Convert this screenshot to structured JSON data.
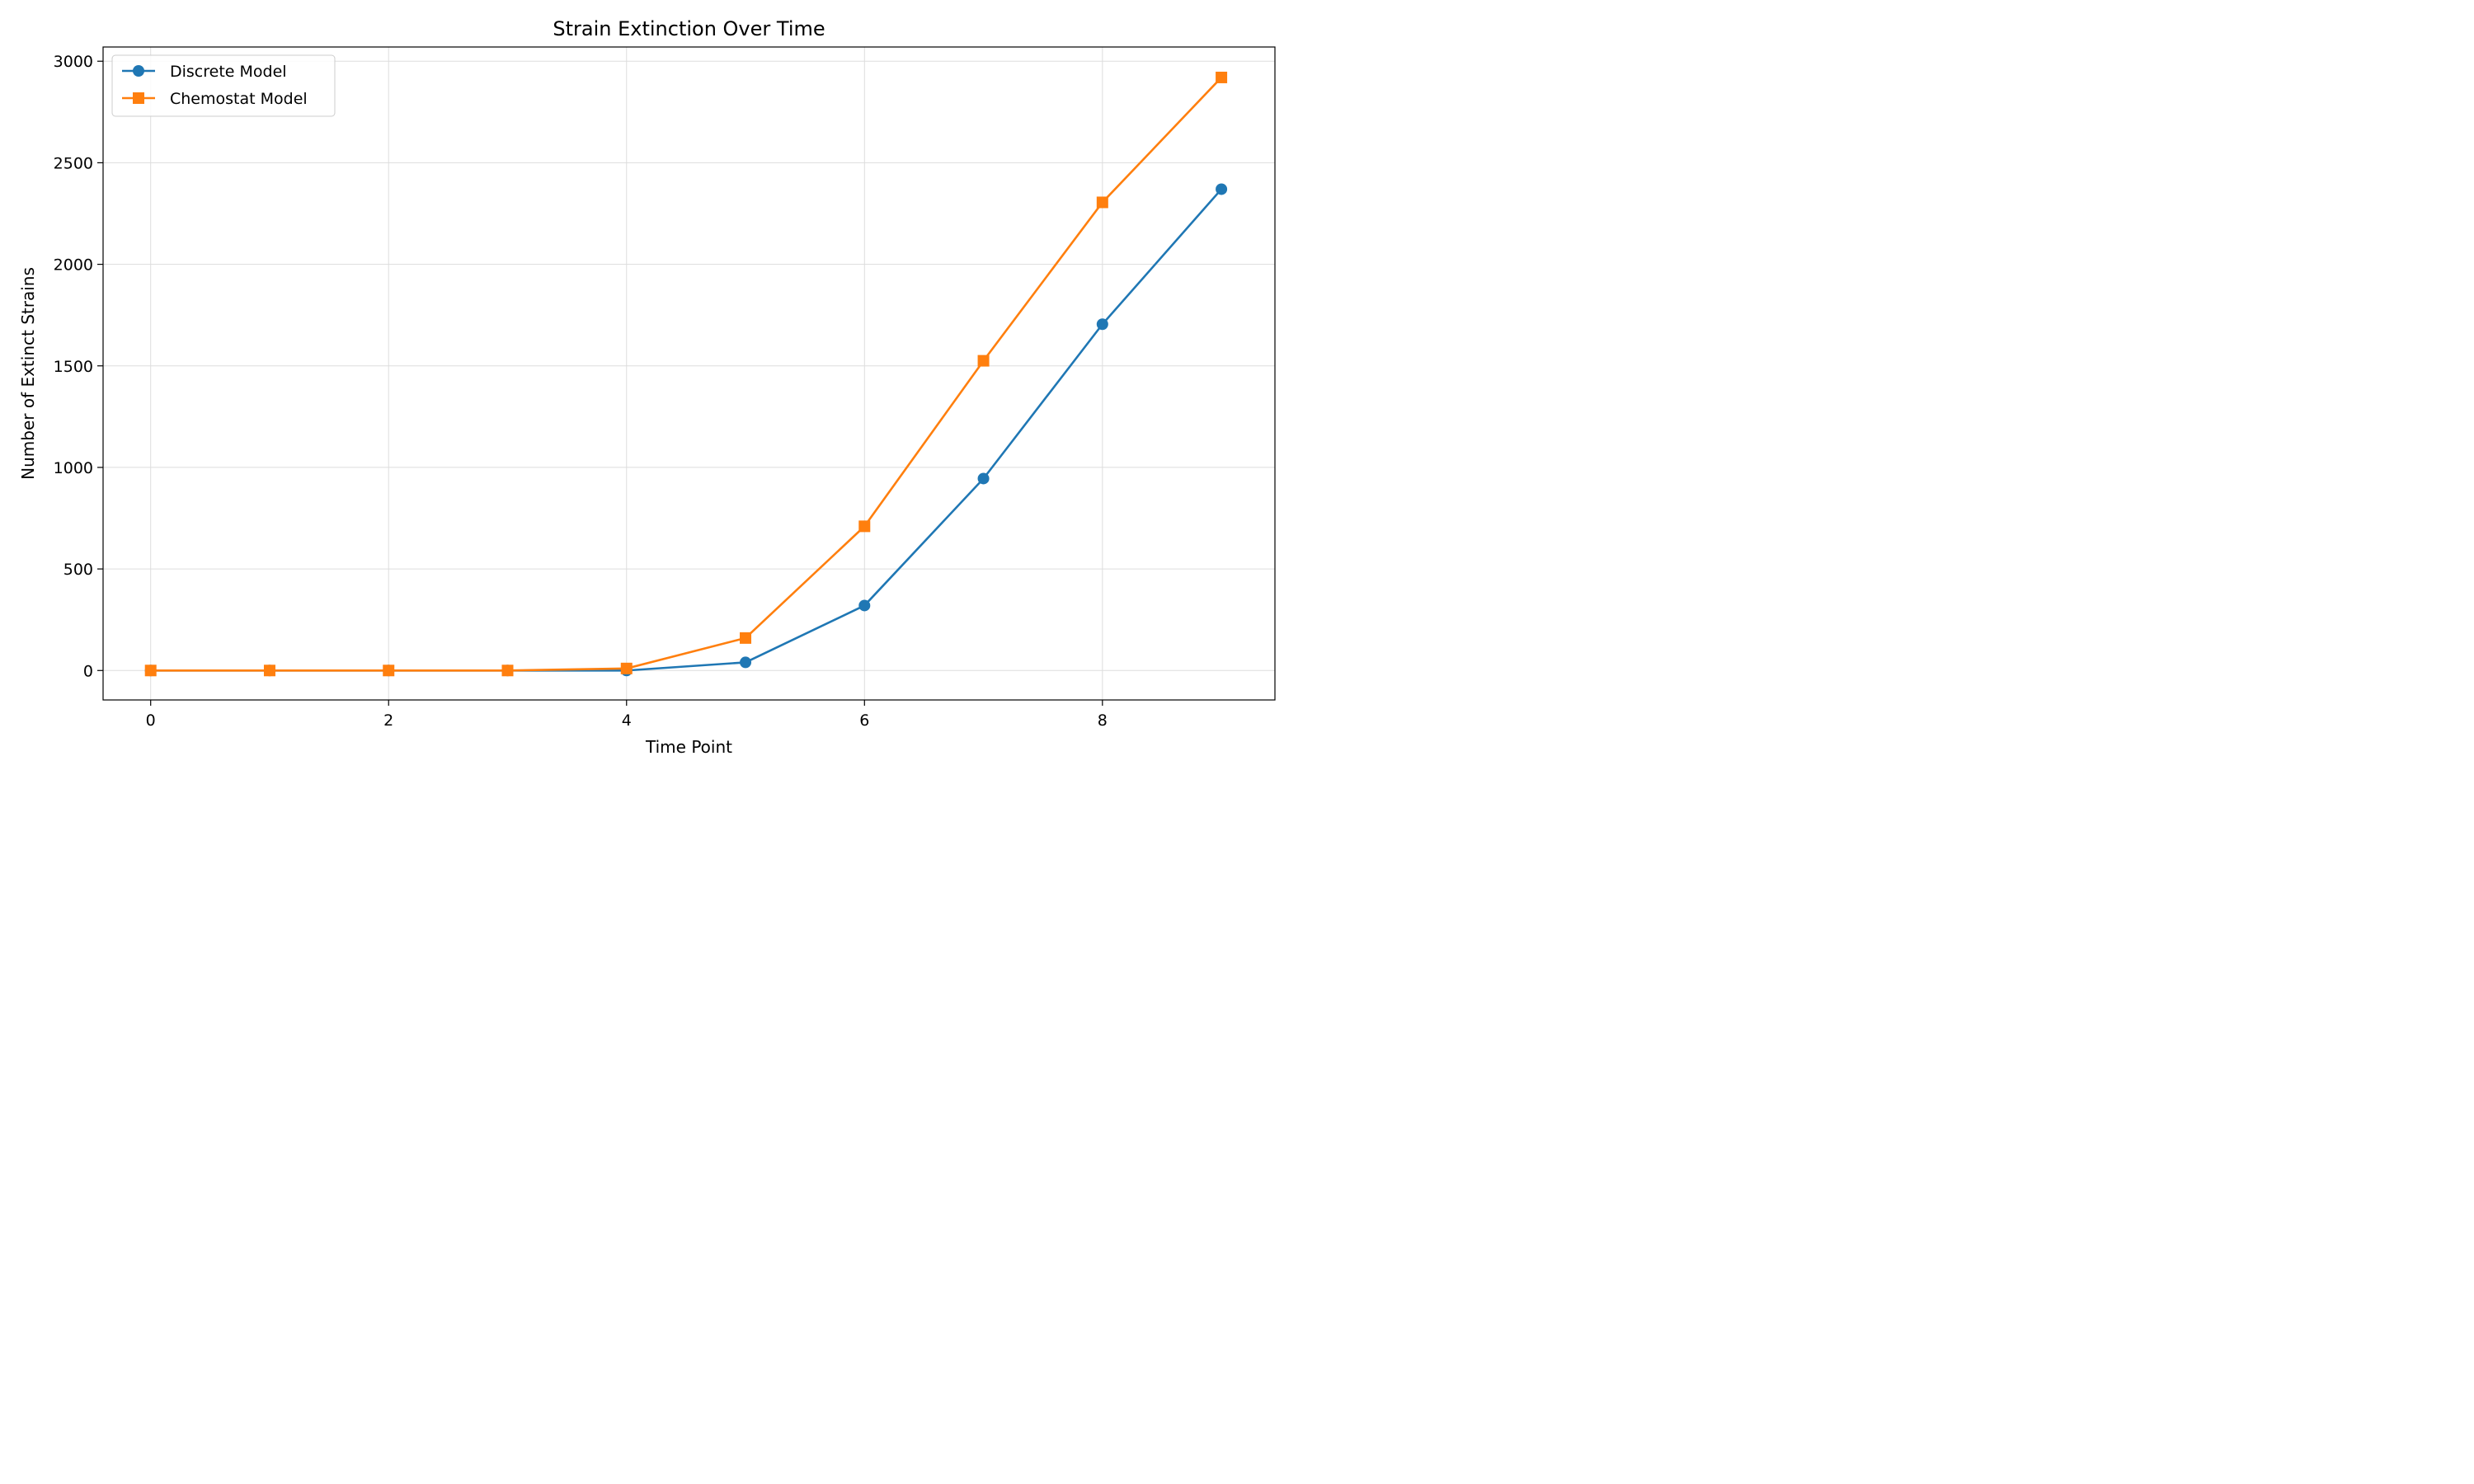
{
  "chart_data": {
    "type": "line",
    "title": "Strain Extinction Over Time",
    "xlabel": "Time Point",
    "ylabel": "Number of Extinct Strains",
    "xlim": [
      -0.4,
      9.45
    ],
    "ylim": [
      -145,
      3070
    ],
    "xticks": [
      0,
      2,
      4,
      6,
      8
    ],
    "yticks": [
      0,
      500,
      1000,
      1500,
      2000,
      2500,
      3000
    ],
    "grid": true,
    "legend_position": "top-left",
    "x": [
      0,
      1,
      2,
      3,
      4,
      5,
      6,
      7,
      8,
      9
    ],
    "series": [
      {
        "name": "Discrete Model",
        "color": "#1f77b4",
        "marker": "circle",
        "values": [
          0,
          0,
          0,
          0,
          0,
          40,
          320,
          945,
          1705,
          2370
        ]
      },
      {
        "name": "Chemostat Model",
        "color": "#ff7f0e",
        "marker": "square",
        "values": [
          0,
          0,
          0,
          0,
          10,
          160,
          710,
          1525,
          2305,
          2920
        ]
      }
    ]
  }
}
